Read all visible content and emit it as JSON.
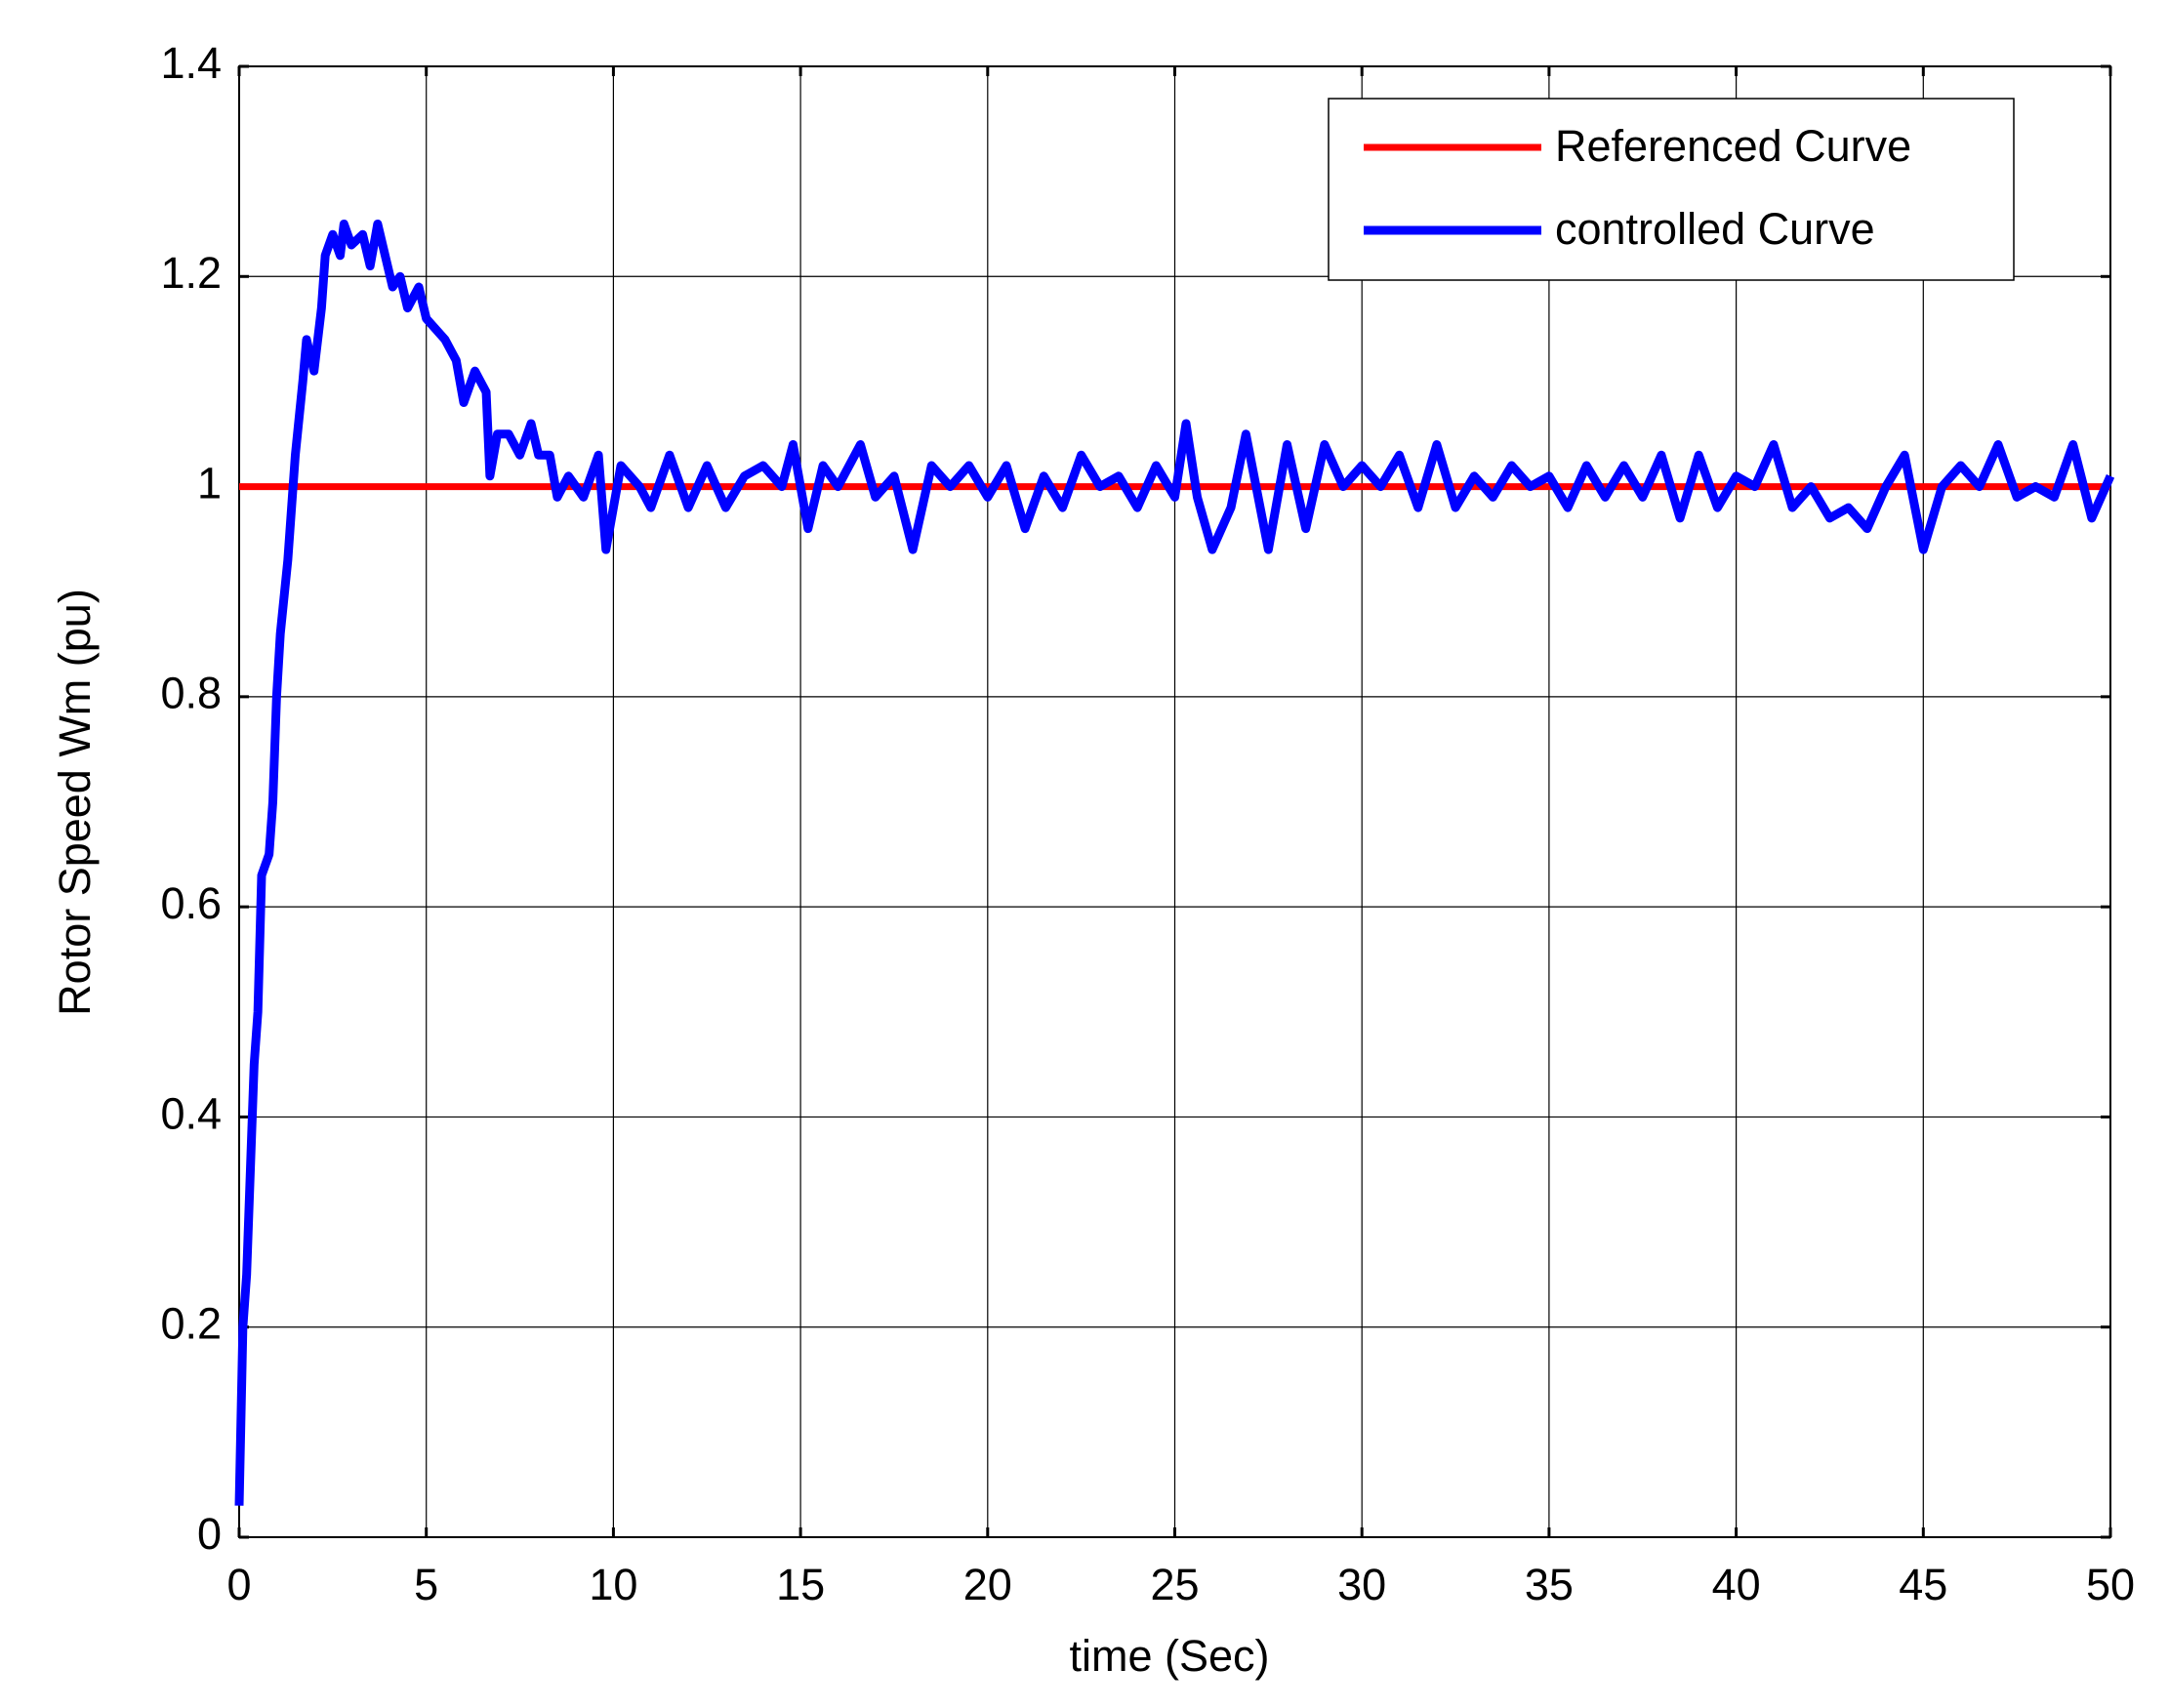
{
  "chart_data": {
    "type": "line",
    "xlabel": "time (Sec)",
    "ylabel": "Rotor Speed Wm (pu)",
    "xlim": [
      0,
      50
    ],
    "xticks": [
      0,
      5,
      10,
      15,
      20,
      25,
      30,
      35,
      40,
      45,
      50
    ],
    "ylim": [
      0,
      1.4
    ],
    "yticks": [
      0,
      0.2,
      0.4,
      0.6,
      0.8,
      1,
      1.2,
      1.4
    ],
    "grid": true,
    "legend": "upper right",
    "series": [
      {
        "name": "Referenced Curve",
        "color": "#ff0000",
        "x": [
          0,
          50
        ],
        "values": [
          1,
          1
        ]
      },
      {
        "name": "controlled Curve",
        "color": "#0000ff",
        "x": [
          0,
          0.1,
          0.2,
          0.3,
          0.4,
          0.5,
          0.6,
          0.8,
          0.9,
          1.0,
          1.1,
          1.3,
          1.5,
          1.7,
          1.8,
          2.0,
          2.2,
          2.3,
          2.5,
          2.7,
          2.8,
          3.0,
          3.3,
          3.5,
          3.7,
          3.9,
          4.1,
          4.3,
          4.5,
          4.8,
          5.0,
          5.5,
          5.8,
          6.0,
          6.3,
          6.6,
          6.7,
          6.9,
          7.2,
          7.5,
          7.8,
          8.0,
          8.3,
          8.5,
          8.8,
          9.2,
          9.6,
          9.8,
          10.2,
          10.7,
          11.0,
          11.5,
          12.0,
          12.5,
          13.0,
          13.5,
          14.0,
          14.5,
          14.8,
          15.2,
          15.6,
          16.0,
          16.6,
          17.0,
          17.5,
          18.0,
          18.5,
          19.0,
          19.5,
          20.0,
          20.5,
          21.0,
          21.5,
          22.0,
          22.5,
          23.0,
          23.5,
          24.0,
          24.5,
          25.0,
          25.3,
          25.6,
          26.0,
          26.5,
          26.9,
          27.5,
          28.0,
          28.5,
          29.0,
          29.5,
          30.0,
          30.5,
          31.0,
          31.5,
          32.0,
          32.5,
          33.0,
          33.5,
          34.0,
          34.5,
          35.0,
          35.5,
          36.0,
          36.5,
          37.0,
          37.5,
          38.0,
          38.5,
          39.0,
          39.5,
          40.0,
          40.5,
          41.0,
          41.5,
          42.0,
          42.5,
          43.0,
          43.5,
          44.0,
          44.5,
          45.0,
          45.5,
          46.0,
          46.5,
          47.0,
          47.5,
          48.0,
          48.5,
          49.0,
          49.5,
          50.0
        ],
        "values": [
          0.03,
          0.2,
          0.25,
          0.35,
          0.45,
          0.5,
          0.63,
          0.65,
          0.7,
          0.8,
          0.86,
          0.93,
          1.03,
          1.1,
          1.14,
          1.11,
          1.17,
          1.22,
          1.24,
          1.22,
          1.25,
          1.23,
          1.24,
          1.21,
          1.25,
          1.22,
          1.19,
          1.2,
          1.17,
          1.19,
          1.16,
          1.14,
          1.12,
          1.08,
          1.11,
          1.09,
          1.01,
          1.05,
          1.05,
          1.03,
          1.06,
          1.03,
          1.03,
          0.99,
          1.01,
          0.99,
          1.03,
          0.94,
          1.02,
          1.0,
          0.98,
          1.03,
          0.98,
          1.02,
          0.98,
          1.01,
          1.02,
          1.0,
          1.04,
          0.96,
          1.02,
          1.0,
          1.04,
          0.99,
          1.01,
          0.94,
          1.02,
          1.0,
          1.02,
          0.99,
          1.02,
          0.96,
          1.01,
          0.98,
          1.03,
          1.0,
          1.01,
          0.98,
          1.02,
          0.99,
          1.06,
          0.99,
          0.94,
          0.98,
          1.05,
          0.94,
          1.04,
          0.96,
          1.04,
          1.0,
          1.02,
          1.0,
          1.03,
          0.98,
          1.04,
          0.98,
          1.01,
          0.99,
          1.02,
          1.0,
          1.01,
          0.98,
          1.02,
          0.99,
          1.02,
          0.99,
          1.03,
          0.97,
          1.03,
          0.98,
          1.01,
          1.0,
          1.04,
          0.98,
          1.0,
          0.97,
          0.98,
          0.96,
          1.0,
          1.03,
          0.94,
          1.0,
          1.02,
          1.0,
          1.04,
          0.99,
          1.0,
          0.99,
          1.04,
          0.97,
          1.01
        ]
      }
    ]
  }
}
